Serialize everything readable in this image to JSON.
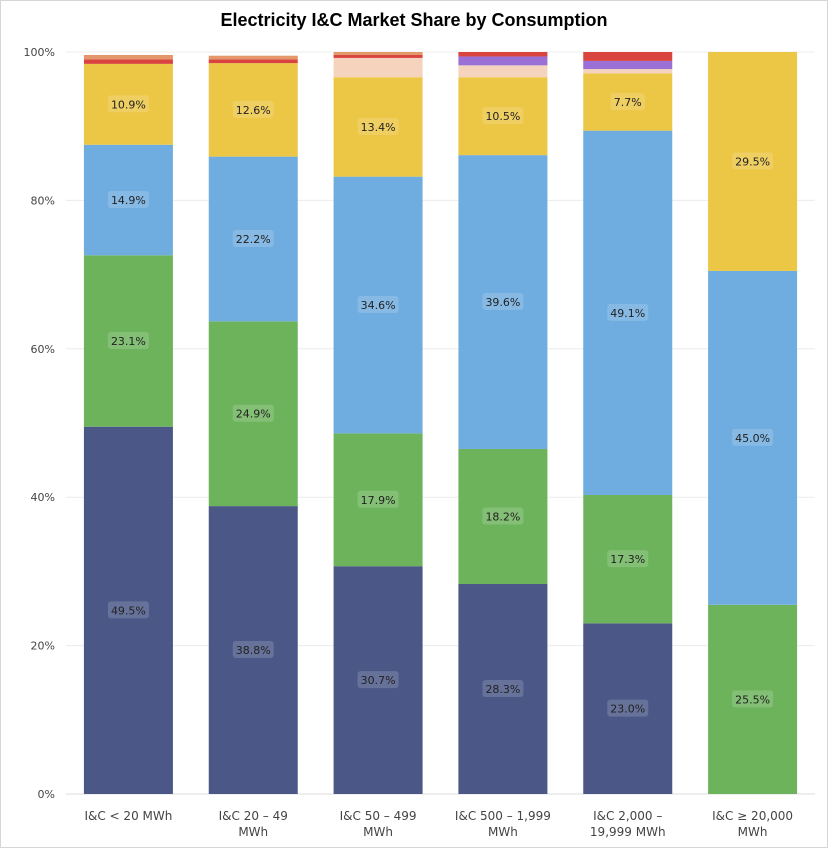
{
  "chart_data": {
    "type": "bar",
    "stacked": true,
    "normalized": true,
    "title": "Electricity I&C Market Share by Consumption",
    "xlabel": "",
    "ylabel": "",
    "ylim": [
      0,
      100
    ],
    "yticks": [
      "0%",
      "20%",
      "40%",
      "60%",
      "80%",
      "100%"
    ],
    "grid": true,
    "legend": "none",
    "categories": [
      [
        "I&C < 20 MWh"
      ],
      [
        "I&C 20 – 49",
        "MWh"
      ],
      [
        "I&C 50 – 499",
        "MWh"
      ],
      [
        "I&C 500 – 1,999",
        "MWh"
      ],
      [
        "I&C 2,000 –",
        "19,999 MWh"
      ],
      [
        "I&C ≥ 20,000",
        "MWh"
      ]
    ],
    "series": [
      {
        "color": "#4a5787",
        "values": [
          49.5,
          38.8,
          30.7,
          28.3,
          23.0,
          0
        ],
        "labels": [
          "49.5%",
          "38.8%",
          "30.7%",
          "28.3%",
          "23.0%",
          ""
        ]
      },
      {
        "color": "#6db35c",
        "values": [
          23.1,
          24.9,
          17.9,
          18.2,
          17.3,
          25.5
        ],
        "labels": [
          "23.1%",
          "24.9%",
          "17.9%",
          "18.2%",
          "17.3%",
          "25.5%"
        ]
      },
      {
        "color": "#6fade0",
        "values": [
          14.9,
          22.2,
          34.6,
          39.6,
          49.1,
          45.0
        ],
        "labels": [
          "14.9%",
          "22.2%",
          "34.6%",
          "39.6%",
          "49.1%",
          "45.0%"
        ]
      },
      {
        "color": "#ecc645",
        "values": [
          10.9,
          12.6,
          13.4,
          10.5,
          7.7,
          29.5
        ],
        "labels": [
          "10.9%",
          "12.6%",
          "13.4%",
          "10.5%",
          "7.7%",
          "29.5%"
        ]
      },
      {
        "color": "#f6d3bd",
        "values": [
          0,
          0,
          2.6,
          1.6,
          0.6,
          0
        ],
        "labels": [
          "",
          "",
          "",
          "",
          "",
          ""
        ]
      },
      {
        "color": "#9a6fd6",
        "values": [
          0,
          0,
          0,
          1.2,
          1.1,
          0
        ],
        "labels": [
          "",
          "",
          "",
          "",
          "",
          ""
        ]
      },
      {
        "color": "#d9443e",
        "values": [
          0.6,
          0.5,
          0.4,
          0.6,
          1.2,
          0
        ],
        "labels": [
          "",
          "",
          "",
          "",
          "",
          ""
        ]
      },
      {
        "color": "#e3976b",
        "values": [
          0.6,
          0.5,
          0.4,
          0,
          0,
          0
        ],
        "labels": [
          "",
          "",
          "",
          "",
          "",
          ""
        ]
      }
    ]
  }
}
